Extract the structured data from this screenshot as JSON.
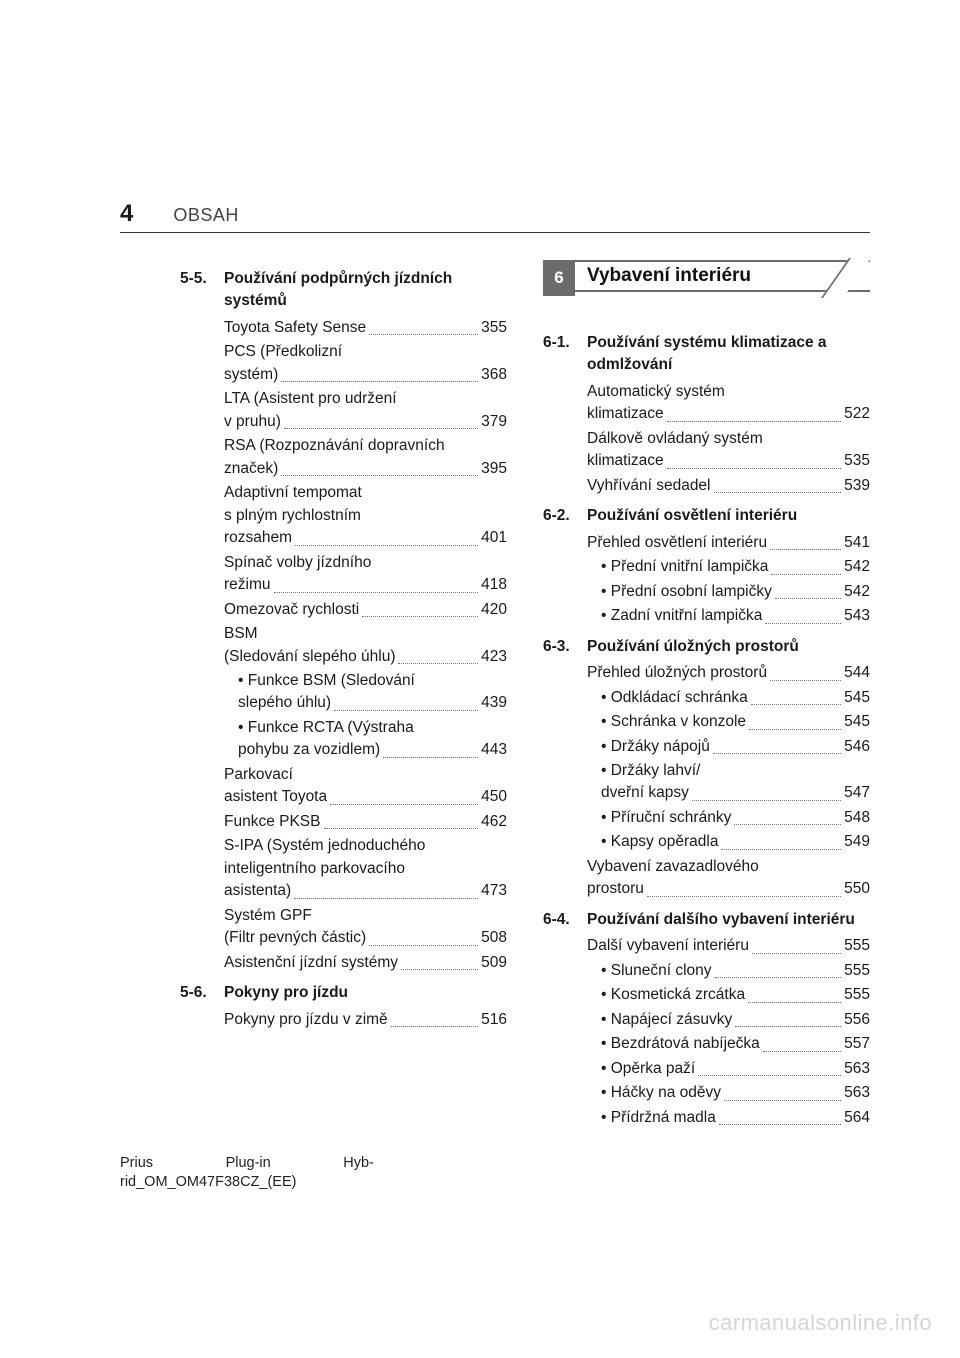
{
  "header": {
    "page_number": "4",
    "chapter_name": "OBSAH"
  },
  "left_column": {
    "sections": [
      {
        "number": "5-5.",
        "title": "Používání podpůrných jízdních systémů",
        "entries": [
          {
            "label_lines": [
              "Toyota Safety Sense"
            ],
            "page": "355"
          },
          {
            "label_lines": [
              "PCS (Předkolizní",
              "systém)"
            ],
            "page": "368"
          },
          {
            "label_lines": [
              "LTA (Asistent pro udržení",
              "v pruhu)"
            ],
            "page": "379"
          },
          {
            "label_lines": [
              "RSA (Rozpoznávání dopravních",
              "značek)"
            ],
            "page": "395"
          },
          {
            "label_lines": [
              "Adaptivní tempomat",
              "s plným rychlostním",
              "rozsahem"
            ],
            "page": "401"
          },
          {
            "label_lines": [
              "Spínač volby jízdního",
              "režimu"
            ],
            "page": "418"
          },
          {
            "label_lines": [
              "Omezovač rychlosti"
            ],
            "page": "420"
          },
          {
            "label_lines": [
              "BSM",
              "(Sledování slepého úhlu)"
            ],
            "page": "423"
          },
          {
            "label_lines": [
              "• Funkce BSM (Sledování",
              "slepého úhlu)"
            ],
            "page": "439",
            "indent": 1
          },
          {
            "label_lines": [
              "• Funkce RCTA (Výstraha",
              "pohybu za vozidlem)"
            ],
            "page": "443",
            "indent": 1
          },
          {
            "label_lines": [
              "Parkovací",
              "asistent Toyota"
            ],
            "page": "450"
          },
          {
            "label_lines": [
              "Funkce PKSB"
            ],
            "page": "462"
          },
          {
            "label_lines": [
              "S-IPA (Systém jednoduchého",
              "inteligentního parkovacího",
              "asistenta)"
            ],
            "page": "473"
          },
          {
            "label_lines": [
              "Systém GPF",
              "(Filtr pevných částic)"
            ],
            "page": "508"
          },
          {
            "label_lines": [
              "Asistenční jízdní systémy"
            ],
            "page": "509",
            "tight": true
          }
        ]
      },
      {
        "number": "5-6.",
        "title": "Pokyny pro jízdu",
        "entries": [
          {
            "label_lines": [
              "Pokyny pro jízdu v zimě"
            ],
            "page": "516"
          }
        ]
      }
    ]
  },
  "right_column": {
    "chapter_box": {
      "number": "6",
      "title": "Vybavení interiéru"
    },
    "sections": [
      {
        "number": "6-1.",
        "title": "Používání systému klimatizace a odmlžování",
        "entries": [
          {
            "label_lines": [
              "Automatický systém",
              "klimatizace"
            ],
            "page": "522"
          },
          {
            "label_lines": [
              "Dálkově ovládaný systém",
              "klimatizace"
            ],
            "page": "535"
          },
          {
            "label_lines": [
              "Vyhřívání sedadel"
            ],
            "page": "539"
          }
        ]
      },
      {
        "number": "6-2.",
        "title": "Používání osvětlení interiéru",
        "entries": [
          {
            "label_lines": [
              "Přehled osvětlení interiéru"
            ],
            "page": "541",
            "tight": true
          },
          {
            "label_lines": [
              "• Přední vnitřní lampička"
            ],
            "page": "542",
            "indent": 1,
            "tight": true
          },
          {
            "label_lines": [
              "• Přední osobní lampičky"
            ],
            "page": "542",
            "indent": 1,
            "tight": true
          },
          {
            "label_lines": [
              "• Zadní vnitřní lampička"
            ],
            "page": "543",
            "indent": 1,
            "tight": true
          }
        ]
      },
      {
        "number": "6-3.",
        "title": "Používání úložných prostorů",
        "entries": [
          {
            "label_lines": [
              "Přehled úložných prostorů"
            ],
            "page": "544",
            "tight": true
          },
          {
            "label_lines": [
              "• Odkládací schránka"
            ],
            "page": "545",
            "indent": 1
          },
          {
            "label_lines": [
              "• Schránka v konzole"
            ],
            "page": "545",
            "indent": 1
          },
          {
            "label_lines": [
              "• Držáky nápojů"
            ],
            "page": "546",
            "indent": 1
          },
          {
            "label_lines": [
              "• Držáky lahví/",
              "dveřní kapsy"
            ],
            "page": "547",
            "indent": 1
          },
          {
            "label_lines": [
              "• Příruční schránky"
            ],
            "page": "548",
            "indent": 1
          },
          {
            "label_lines": [
              "• Kapsy opěradla"
            ],
            "page": "549",
            "indent": 1
          },
          {
            "label_lines": [
              "Vybavení zavazadlového",
              "prostoru"
            ],
            "page": "550"
          }
        ]
      },
      {
        "number": "6-4.",
        "title": "Používání dalšího vybavení interiéru",
        "entries": [
          {
            "label_lines": [
              "Další vybavení interiéru"
            ],
            "page": "555"
          },
          {
            "label_lines": [
              "• Sluneční clony"
            ],
            "page": "555",
            "indent": 1
          },
          {
            "label_lines": [
              "• Kosmetická zrcátka"
            ],
            "page": "555",
            "indent": 1
          },
          {
            "label_lines": [
              "• Napájecí zásuvky"
            ],
            "page": "556",
            "indent": 1
          },
          {
            "label_lines": [
              "• Bezdrátová nabíječka"
            ],
            "page": "557",
            "indent": 1
          },
          {
            "label_lines": [
              "• Opěrka paží"
            ],
            "page": "563",
            "indent": 1
          },
          {
            "label_lines": [
              "• Háčky na oděvy"
            ],
            "page": "563",
            "indent": 1
          },
          {
            "label_lines": [
              "• Přídržná madla"
            ],
            "page": "564",
            "indent": 1
          }
        ]
      }
    ]
  },
  "footer": {
    "line1": "Prius",
    "line1b": "Plug-in",
    "line1c": "Hyb-",
    "line2": "rid_OM_OM47F38CZ_(EE)"
  },
  "watermark": "carmanualsonline.info"
}
